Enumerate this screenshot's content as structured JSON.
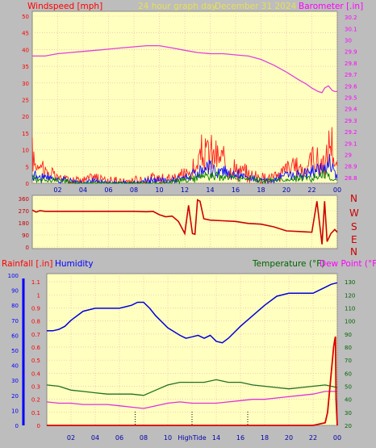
{
  "header": {
    "left_label": "Windspeed [mph]",
    "center_label": "24 hour graph day",
    "date_label": "December 31 2024",
    "right_label": "Barometer [.in]"
  },
  "dir_letters": [
    "N",
    "W",
    "S",
    "E",
    "N"
  ],
  "bottom_header": {
    "rainfall": "Rainfall [.in]",
    "humidity": "Humidity",
    "temperature": "Temperature (°F)",
    "dewpoint": "Dew Point (°F)"
  },
  "colors": {
    "plot_bg": "#ffffc0",
    "frame_bg": "#bdbdbd",
    "wind": "#ff2020",
    "gust": "#ff0000",
    "wind_blue": "#1010ff",
    "wind_green": "#008000",
    "barometer": "#e040e0",
    "direction": "#cc0000",
    "humidity": "#0000dd",
    "temperature": "#207020",
    "dewpoint": "#e030e0",
    "rain": "#dd0000",
    "grid": "#e8b0b0"
  },
  "chart_data": [
    {
      "type": "line",
      "name": "wind-barometer",
      "x_tick_labels": [
        "02",
        "04",
        "06",
        "08",
        "10",
        "12",
        "14",
        "16",
        "18",
        "20",
        "22",
        "00"
      ],
      "y_left_ticks": [
        "0",
        "5",
        "10",
        "15",
        "20",
        "25",
        "30",
        "35",
        "40",
        "45",
        "50"
      ],
      "y_left_lim": [
        0,
        50
      ],
      "y_right_ticks": [
        "28.8",
        "28.9",
        "29",
        "29.1",
        "29.2",
        "29.3",
        "29.4",
        "29.5",
        "29.6",
        "29.7",
        "29.8",
        "29.9",
        "30",
        "30.1",
        "30.2"
      ],
      "y_right_lim": [
        28.75,
        30.25
      ],
      "xlim": [
        0,
        24
      ],
      "barometer": {
        "x": [
          0,
          1,
          2,
          3,
          4,
          5,
          6,
          7,
          8,
          9,
          10,
          11,
          12,
          13,
          14,
          15,
          16,
          17,
          18,
          19,
          20,
          21,
          21.5,
          22,
          22.5,
          22.8,
          23,
          23.3,
          23.6,
          23.8,
          24
        ],
        "y": [
          29.86,
          29.86,
          29.88,
          29.89,
          29.9,
          29.91,
          29.92,
          29.93,
          29.94,
          29.95,
          29.95,
          29.93,
          29.91,
          29.89,
          29.88,
          29.88,
          29.87,
          29.86,
          29.83,
          29.78,
          29.72,
          29.65,
          29.62,
          29.58,
          29.55,
          29.54,
          29.58,
          29.6,
          29.56,
          29.55,
          29.55
        ]
      },
      "wind_red": {
        "x": [
          0,
          0.3,
          0.6,
          1,
          1.5,
          2,
          3,
          4,
          5,
          6,
          7,
          8,
          9,
          10,
          11,
          12,
          12.5,
          13,
          13.3,
          13.6,
          14,
          14.5,
          15,
          15.5,
          16,
          17,
          18,
          19,
          19.5,
          20,
          20.5,
          21,
          21.5,
          22,
          22.5,
          23,
          23.2,
          23.5,
          23.8,
          24
        ],
        "y": [
          10,
          6,
          9,
          4,
          3,
          2,
          1,
          1,
          2,
          1,
          0,
          1,
          1,
          2,
          2,
          3,
          4,
          6,
          10,
          10,
          11,
          9,
          8,
          6,
          5,
          3,
          2,
          2,
          3,
          6,
          5,
          6,
          4,
          10,
          7,
          6,
          9,
          17,
          6,
          4
        ]
      },
      "wind_blue": {
        "x": [
          0,
          0.5,
          1,
          2,
          3,
          4,
          5,
          6,
          7,
          8,
          9,
          10,
          11,
          12,
          13,
          13.5,
          14,
          14.5,
          15,
          16,
          17,
          18,
          19,
          20,
          21,
          22,
          22.5,
          23,
          23.5,
          24
        ],
        "y": [
          3,
          2,
          2,
          1,
          1,
          0,
          1,
          0,
          0,
          0,
          1,
          1,
          1,
          2,
          3,
          4,
          5,
          4,
          4,
          3,
          2,
          1,
          1,
          3,
          3,
          4,
          5,
          5,
          7,
          2
        ]
      },
      "wind_green": {
        "x": [
          0,
          1,
          2,
          4,
          6,
          8,
          10,
          12,
          13,
          14,
          15,
          16,
          18,
          20,
          21,
          22,
          23,
          24
        ],
        "y": [
          2,
          1,
          1,
          0,
          0,
          0,
          0,
          1,
          2,
          3,
          2,
          2,
          1,
          1,
          2,
          2,
          3,
          1
        ]
      }
    },
    {
      "type": "line",
      "name": "wind-direction",
      "y_ticks": [
        "0",
        "90",
        "180",
        "270",
        "360"
      ],
      "ylim": [
        0,
        360
      ],
      "xlim": [
        0,
        24
      ],
      "x": [
        0,
        0.3,
        0.6,
        1,
        2,
        4,
        6,
        8,
        9,
        9.5,
        10,
        10.5,
        11,
        11.5,
        12,
        12.3,
        12.6,
        12.8,
        13,
        13.2,
        13.5,
        14,
        15,
        16,
        17,
        18,
        19,
        20,
        21,
        22,
        22.4,
        22.8,
        23,
        23.2,
        23.5,
        23.8,
        24
      ],
      "y": [
        275,
        260,
        270,
        265,
        265,
        265,
        265,
        265,
        262,
        265,
        240,
        225,
        230,
        190,
        100,
        310,
        100,
        95,
        350,
        340,
        210,
        200,
        195,
        190,
        175,
        170,
        150,
        120,
        115,
        110,
        340,
        20,
        340,
        40,
        100,
        130,
        110
      ]
    },
    {
      "type": "line",
      "name": "rain-humidity-temperature",
      "x_tick_labels": [
        "02",
        "04",
        "06",
        "08",
        "10",
        "12",
        "14",
        "16",
        "18",
        "20",
        "22",
        "00"
      ],
      "center_tick_label": "HighTide",
      "humidity_ticks": [
        "0",
        "10",
        "20",
        "30",
        "40",
        "50",
        "60",
        "70",
        "80",
        "90",
        "100"
      ],
      "humidity_lim": [
        0,
        100
      ],
      "rain_ticks": [
        "0",
        "0.1",
        "0.2",
        "0.3",
        "0.4",
        "0.5",
        "0.6",
        "0.7",
        "0.8",
        "0.9",
        "1",
        "1.1"
      ],
      "rain_lim": [
        0,
        1.15
      ],
      "temp_ticks": [
        "20",
        "30",
        "40",
        "50",
        "60",
        "70",
        "80",
        "90",
        "100",
        "110",
        "120",
        "130"
      ],
      "temp_lim": [
        20,
        135
      ],
      "xlim": [
        0,
        24
      ],
      "humidity": {
        "x": [
          0,
          0.5,
          1,
          1.5,
          2,
          3,
          4,
          5,
          6,
          7,
          7.5,
          8,
          8.5,
          9,
          10,
          11,
          11.5,
          12,
          12.5,
          13,
          13.5,
          14,
          14.5,
          15,
          16,
          17,
          18,
          19,
          20,
          21,
          22,
          22.5,
          23,
          23.5,
          24
        ],
        "y": [
          63,
          63,
          64,
          66,
          70,
          76,
          78,
          78,
          78,
          80,
          82,
          82,
          78,
          73,
          65,
          60,
          58,
          59,
          60,
          58,
          60,
          56,
          55,
          58,
          66,
          73,
          80,
          86,
          88,
          88,
          88,
          90,
          92,
          94,
          95
        ]
      },
      "temperature": {
        "x": [
          0,
          1,
          2,
          3,
          4,
          5,
          6,
          7,
          8,
          9,
          10,
          11,
          12,
          13,
          14,
          15,
          16,
          17,
          18,
          19,
          20,
          21,
          22,
          23,
          24
        ],
        "y": [
          51,
          50,
          47,
          46,
          45,
          44,
          44,
          44,
          43,
          47,
          51,
          53,
          53,
          53,
          55,
          53,
          53,
          51,
          50,
          49,
          48,
          49,
          50,
          51,
          49
        ]
      },
      "dewpoint": {
        "x": [
          0,
          1,
          2,
          3,
          4,
          5,
          6,
          7,
          8,
          9,
          10,
          11,
          12,
          13,
          14,
          15,
          16,
          17,
          18,
          19,
          20,
          21,
          22,
          23,
          24
        ],
        "y": [
          38,
          37,
          37,
          36,
          36,
          36,
          35,
          34,
          33,
          35,
          37,
          38,
          37,
          37,
          37,
          38,
          39,
          40,
          40,
          41,
          42,
          43,
          44,
          46,
          46
        ]
      },
      "rainfall": {
        "x": [
          0,
          22,
          23,
          23.2,
          23.4,
          23.6,
          23.7,
          23.8,
          23.85,
          23.9,
          24
        ],
        "y": [
          0,
          0,
          0.02,
          0.1,
          0.3,
          0.5,
          0.6,
          0.66,
          0.68,
          0.2,
          0
        ]
      }
    }
  ]
}
